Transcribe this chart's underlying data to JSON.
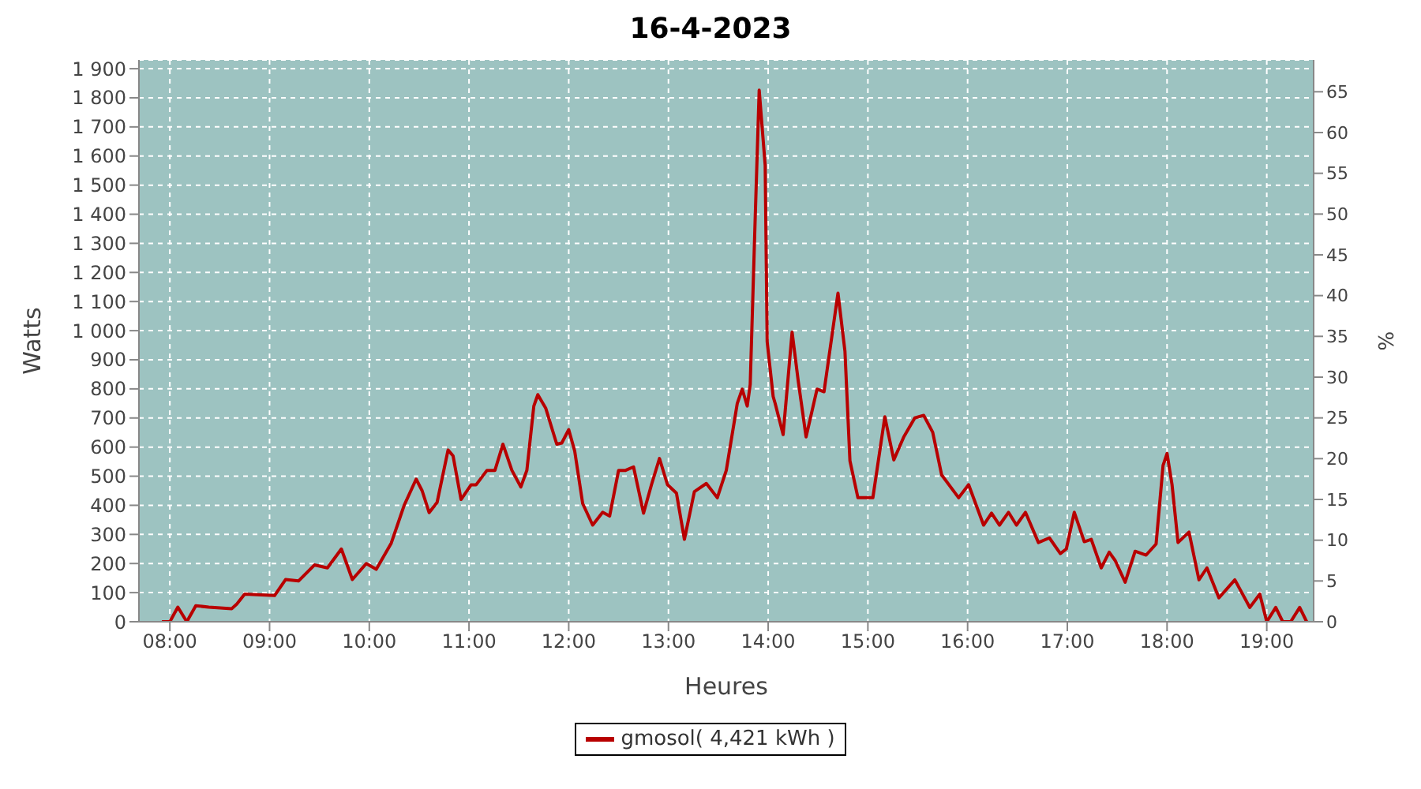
{
  "chart_data": {
    "type": "line",
    "title": "16-4-2023",
    "xlabel": "Heures",
    "ylabel": "Watts",
    "y2label": "%",
    "xlim": [
      7.69,
      19.47
    ],
    "xticks": [
      {
        "value": 8,
        "label": "08:00"
      },
      {
        "value": 9,
        "label": "09:00"
      },
      {
        "value": 10,
        "label": "10:00"
      },
      {
        "value": 11,
        "label": "11:00"
      },
      {
        "value": 12,
        "label": "12:00"
      },
      {
        "value": 13,
        "label": "13:00"
      },
      {
        "value": 14,
        "label": "14:00"
      },
      {
        "value": 15,
        "label": "15:00"
      },
      {
        "value": 16,
        "label": "16:00"
      },
      {
        "value": 17,
        "label": "17:00"
      },
      {
        "value": 18,
        "label": "18:00"
      },
      {
        "value": 19,
        "label": "19:00"
      }
    ],
    "ylim": [
      0,
      1930
    ],
    "yticks": [
      0,
      100,
      200,
      300,
      400,
      500,
      600,
      700,
      800,
      900,
      {
        "value": 1000,
        "label": "1 000"
      },
      {
        "value": 1100,
        "label": "1 100"
      },
      {
        "value": 1200,
        "label": "1 200"
      },
      {
        "value": 1300,
        "label": "1 300"
      },
      {
        "value": 1400,
        "label": "1 400"
      },
      {
        "value": 1500,
        "label": "1 500"
      },
      {
        "value": 1600,
        "label": "1 600"
      },
      {
        "value": 1700,
        "label": "1 700"
      },
      {
        "value": 1800,
        "label": "1 800"
      },
      {
        "value": 1900,
        "label": "1 900"
      }
    ],
    "y2lim": [
      0,
      68.9
    ],
    "y2ticks": [
      0,
      5,
      10,
      15,
      20,
      25,
      30,
      35,
      40,
      45,
      50,
      55,
      60,
      65
    ],
    "grid": true,
    "legend": "bottom",
    "marker": "none",
    "line_style": "solid",
    "x": [
      7.92,
      8.0,
      8.08,
      8.17,
      8.26,
      8.39,
      8.62,
      8.67,
      8.75,
      9.05,
      9.16,
      9.29,
      9.45,
      9.58,
      9.72,
      9.83,
      9.97,
      10.07,
      10.22,
      10.35,
      10.47,
      10.53,
      10.6,
      10.68,
      10.79,
      10.84,
      10.92,
      11.02,
      11.07,
      11.18,
      11.26,
      11.34,
      11.43,
      11.52,
      11.58,
      11.65,
      11.69,
      11.77,
      11.88,
      11.93,
      12.0,
      12.06,
      12.14,
      12.24,
      12.34,
      12.41,
      12.5,
      12.57,
      12.65,
      12.75,
      12.83,
      12.91,
      12.99,
      13.08,
      13.16,
      13.26,
      13.38,
      13.49,
      13.58,
      13.69,
      13.74,
      13.79,
      13.82,
      13.87,
      13.91,
      13.97,
      13.99,
      14.05,
      14.07,
      14.15,
      14.24,
      14.3,
      14.38,
      14.49,
      14.56,
      14.7,
      14.77,
      14.82,
      14.9,
      15.05,
      15.17,
      15.26,
      15.36,
      15.47,
      15.56,
      15.65,
      15.74,
      15.91,
      16.01,
      16.16,
      16.24,
      16.32,
      16.41,
      16.49,
      16.58,
      16.71,
      16.82,
      16.93,
      16.99,
      17.07,
      17.17,
      17.24,
      17.34,
      17.42,
      17.48,
      17.58,
      17.68,
      17.79,
      17.89,
      17.96,
      18.0,
      18.05,
      18.11,
      18.22,
      18.32,
      18.4,
      18.52,
      18.68,
      18.83,
      18.93,
      19.0,
      19.09,
      19.16,
      19.24,
      19.33,
      19.4
    ],
    "series": [
      {
        "name": "gmosol( 4,421 kWh )",
        "color": "#b80000",
        "values": [
          0,
          0,
          50,
          0,
          55,
          50,
          45,
          60,
          95,
          90,
          145,
          140,
          195,
          185,
          250,
          145,
          200,
          180,
          270,
          400,
          490,
          450,
          375,
          410,
          590,
          570,
          420,
          470,
          470,
          520,
          520,
          610,
          520,
          463,
          520,
          741,
          780,
          733,
          610,
          614,
          660,
          586,
          406,
          332,
          376,
          363,
          520,
          520,
          532,
          373,
          471,
          561,
          471,
          442,
          283,
          447,
          475,
          426,
          520,
          750,
          799,
          741,
          815,
          1388,
          1826,
          1568,
          962,
          774,
          750,
          643,
          995,
          831,
          635,
          799,
          790,
          1129,
          929,
          553,
          426,
          426,
          704,
          556,
          635,
          700,
          709,
          651,
          504,
          426,
          471,
          332,
          373,
          332,
          376,
          332,
          376,
          272,
          288,
          234,
          250,
          376,
          275,
          283,
          185,
          239,
          210,
          136,
          242,
          229,
          267,
          537,
          578,
          471,
          272,
          308,
          144,
          185,
          82,
          144,
          49,
          95,
          0,
          49,
          0,
          0,
          49,
          0
        ]
      }
    ]
  }
}
